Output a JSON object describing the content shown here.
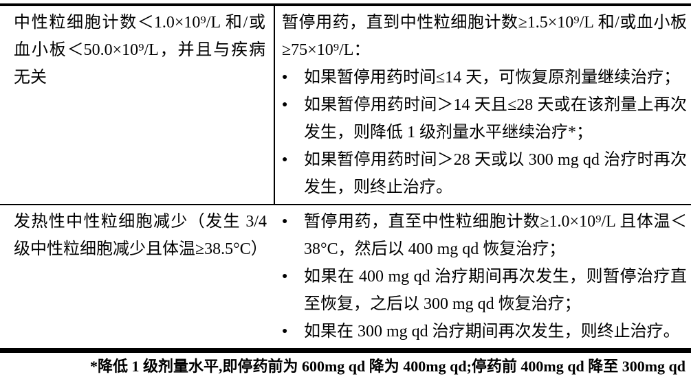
{
  "colors": {
    "text": "#000000",
    "border": "#000000",
    "background": "#ffffff"
  },
  "bullet_glyph": "●",
  "table": {
    "rows": [
      {
        "condition": "中性粒细胞计数＜1.0×10⁹/L 和/或血小板＜50.0×10⁹/L，并且与疾病无关",
        "action_intro": "暂停用药，直到中性粒细胞计数≥1.5×10⁹/L 和/或血小板≥75×10⁹/L：",
        "bullets": [
          "如果暂停用药时间≤14 天，可恢复原剂量继续治疗；",
          "如果暂停用药时间＞14 天且≤28 天或在该剂量上再次发生，则降低 1 级剂量水平继续治疗*；",
          "如果暂停用药时间＞28 天或以 300 mg qd 治疗时再次发生，则终止治疗。"
        ]
      },
      {
        "condition": "发热性中性粒细胞减少（发生 3/4 级中性粒细胞减少且体温≥38.5°C）",
        "bullets": [
          "暂停用药，直至中性粒细胞计数≥1.0×10⁹/L 且体温＜38°C，然后以 400 mg qd 恢复治疗；",
          "如果在 400 mg qd 治疗期间再次发生，则暂停治疗直至恢复，之后以 300 mg qd 恢复治疗；",
          "如果在 300 mg qd 治疗期间再次发生，则终止治疗。"
        ]
      }
    ]
  },
  "footnote": "*降低 1 级剂量水平,即停药前为 600mg qd 降为 400mg qd;停药前 400mg qd 降至 300mg qd"
}
